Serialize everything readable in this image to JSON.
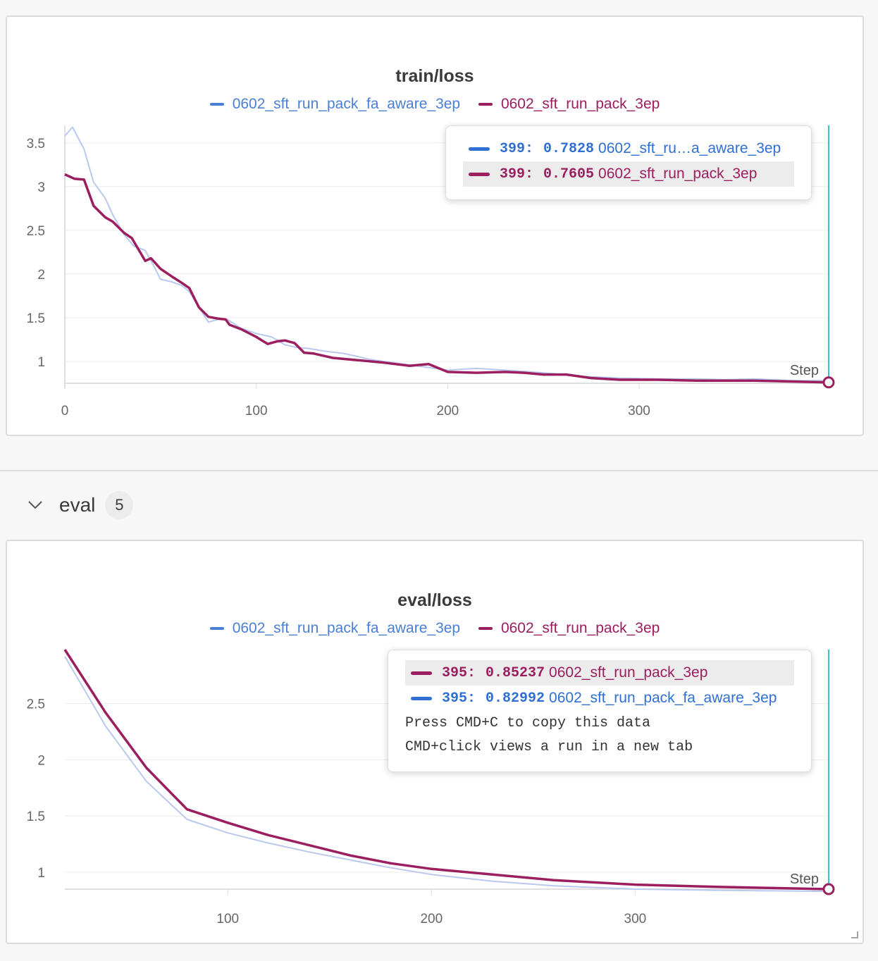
{
  "section": {
    "title": "eval",
    "count": "5"
  },
  "colors": {
    "series_a": "#4a7fd6",
    "series_b": "#9b1e5f",
    "series_a_light": "#b9c9ee",
    "hover_line": "#35c3d4"
  },
  "panels": [
    {
      "id": "train",
      "title": "train/loss",
      "step_label": "Step",
      "legend": [
        {
          "name": "0602_sft_run_pack_fa_aware_3ep",
          "color": "#4a7fd6"
        },
        {
          "name": "0602_sft_run_pack_3ep",
          "color": "#9b1e5f"
        }
      ],
      "tooltip": [
        {
          "step": "399",
          "sep": ":",
          "value": "0.7828",
          "name": "0602_sft_ru…a_aware_3ep",
          "color": "#2f6fd3",
          "highlighted": false
        },
        {
          "step": "399",
          "sep": ":",
          "value": "0.7605",
          "name": "0602_sft_run_pack_3ep",
          "color": "#9b1e5f",
          "highlighted": true
        }
      ],
      "notes": []
    },
    {
      "id": "eval",
      "title": "eval/loss",
      "step_label": "Step",
      "legend": [
        {
          "name": "0602_sft_run_pack_fa_aware_3ep",
          "color": "#4a7fd6"
        },
        {
          "name": "0602_sft_run_pack_3ep",
          "color": "#9b1e5f"
        }
      ],
      "tooltip": [
        {
          "step": "395",
          "sep": ":",
          "value": "0.85237",
          "name": "0602_sft_run_pack_3ep",
          "color": "#9b1e5f",
          "highlighted": true
        },
        {
          "step": "395",
          "sep": ":",
          "value": "0.82992",
          "name": "0602_sft_run_pack_fa_aware_3ep",
          "color": "#2f6fd3",
          "highlighted": false
        }
      ],
      "notes": [
        "Press CMD+C to copy this data",
        "CMD+click views a run in a new tab"
      ]
    }
  ],
  "chart_data": [
    {
      "type": "line",
      "title": "train/loss",
      "xlabel": "Step",
      "ylabel": "",
      "xlim": [
        0,
        399
      ],
      "ylim": [
        0.75,
        3.7
      ],
      "x_ticks": [
        "0",
        "100",
        "200",
        "300"
      ],
      "y_ticks": [
        "1",
        "1.5",
        "2",
        "2.5",
        "3",
        "3.5"
      ],
      "grid": true,
      "series": [
        {
          "name": "0602_sft_run_pack_fa_aware_3ep",
          "x": [
            0,
            4,
            10,
            15,
            21,
            25,
            31,
            36,
            42,
            47,
            50,
            56,
            61,
            65,
            70,
            75,
            80,
            85,
            92,
            100,
            108,
            115,
            121,
            127,
            135,
            146,
            160,
            180,
            200,
            215,
            230,
            250,
            270,
            290,
            310,
            330,
            345,
            360,
            380,
            399
          ],
          "y": [
            3.58,
            3.68,
            3.43,
            3.05,
            2.87,
            2.68,
            2.45,
            2.32,
            2.27,
            2.07,
            1.94,
            1.91,
            1.87,
            1.8,
            1.62,
            1.45,
            1.48,
            1.48,
            1.38,
            1.32,
            1.28,
            1.19,
            1.16,
            1.15,
            1.12,
            1.09,
            1.02,
            0.96,
            0.9,
            0.92,
            0.9,
            0.87,
            0.83,
            0.81,
            0.8,
            0.8,
            0.79,
            0.8,
            0.78,
            0.78
          ]
        },
        {
          "name": "0602_sft_run_pack_3ep",
          "x": [
            0,
            5,
            10,
            15,
            21,
            25,
            31,
            35,
            42,
            45,
            50,
            56,
            61,
            65,
            70,
            75,
            80,
            84,
            86,
            92,
            100,
            106,
            111,
            115,
            120,
            125,
            130,
            140,
            150,
            165,
            180,
            190,
            200,
            215,
            230,
            240,
            250,
            262,
            275,
            290,
            310,
            330,
            345,
            360,
            380,
            399
          ],
          "y": [
            3.14,
            3.09,
            3.08,
            2.78,
            2.65,
            2.6,
            2.47,
            2.41,
            2.15,
            2.18,
            2.06,
            1.97,
            1.9,
            1.84,
            1.62,
            1.51,
            1.49,
            1.48,
            1.42,
            1.37,
            1.28,
            1.2,
            1.23,
            1.24,
            1.21,
            1.1,
            1.09,
            1.04,
            1.02,
            0.99,
            0.95,
            0.97,
            0.88,
            0.87,
            0.88,
            0.87,
            0.85,
            0.85,
            0.81,
            0.79,
            0.79,
            0.78,
            0.78,
            0.78,
            0.77,
            0.76
          ]
        }
      ]
    },
    {
      "type": "line",
      "title": "eval/loss",
      "xlabel": "Step",
      "ylabel": "",
      "xlim": [
        20,
        395
      ],
      "ylim": [
        0.85,
        2.98
      ],
      "x_ticks": [
        "100",
        "200",
        "300"
      ],
      "y_ticks": [
        "1",
        "1.5",
        "2",
        "2.5"
      ],
      "grid": true,
      "series": [
        {
          "name": "0602_sft_run_pack_fa_aware_3ep",
          "x": [
            20,
            40,
            60,
            80,
            100,
            120,
            140,
            160,
            180,
            200,
            230,
            260,
            300,
            340,
            395
          ],
          "y": [
            2.92,
            2.3,
            1.81,
            1.47,
            1.35,
            1.26,
            1.18,
            1.11,
            1.04,
            0.98,
            0.92,
            0.88,
            0.85,
            0.84,
            0.83
          ]
        },
        {
          "name": "0602_sft_run_pack_3ep",
          "x": [
            20,
            40,
            60,
            80,
            100,
            120,
            140,
            160,
            180,
            200,
            230,
            260,
            300,
            340,
            395
          ],
          "y": [
            2.98,
            2.42,
            1.93,
            1.56,
            1.44,
            1.33,
            1.24,
            1.15,
            1.08,
            1.03,
            0.98,
            0.93,
            0.89,
            0.87,
            0.85
          ]
        }
      ]
    }
  ]
}
